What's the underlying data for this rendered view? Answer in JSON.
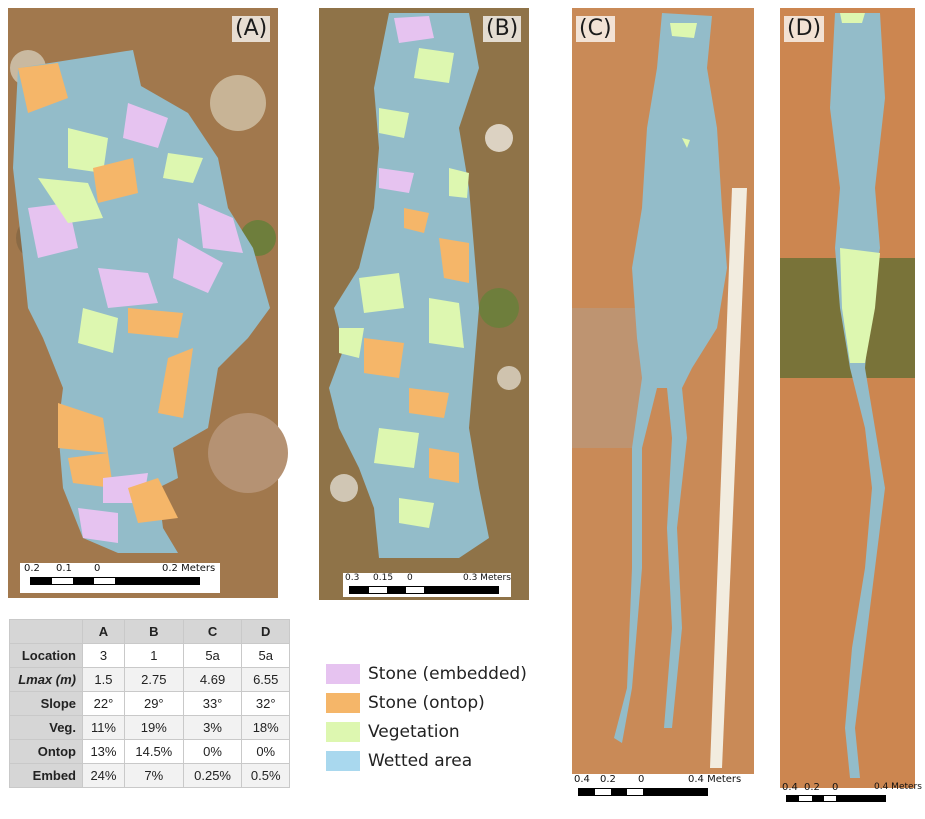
{
  "panels": [
    {
      "label": "(A)",
      "scale": {
        "ticks": [
          "0.2",
          "0.1",
          "0",
          "0.2 Meters"
        ]
      }
    },
    {
      "label": "(B)",
      "scale": {
        "ticks": [
          "0.3",
          "0.15",
          "0",
          "0.3 Meters"
        ]
      }
    },
    {
      "label": "(C)",
      "scale": {
        "ticks": [
          "0.4",
          "0.2",
          "0",
          "0.4 Meters"
        ]
      }
    },
    {
      "label": "(D)",
      "scale": {
        "ticks": [
          "0.4",
          "0.2",
          "0",
          "0.4 Meters"
        ]
      }
    }
  ],
  "legend": [
    {
      "label": "Stone (embedded)",
      "color": "#e6c3f0"
    },
    {
      "label": "Stone (ontop)",
      "color": "#f5b669"
    },
    {
      "label": "Vegetation",
      "color": "#ddf7b0"
    },
    {
      "label": "Wetted area",
      "color": "#a9d8ee"
    }
  ],
  "table": {
    "columns": [
      "",
      "A",
      "B",
      "C",
      "D"
    ],
    "rows": [
      {
        "label": "Location",
        "values": [
          "3",
          "1",
          "5a",
          "5a"
        ]
      },
      {
        "label": "Lmax (m)",
        "values": [
          "1.5",
          "2.75",
          "4.69",
          "6.55"
        ]
      },
      {
        "label": "Slope",
        "values": [
          "22°",
          "29°",
          "33°",
          "32°"
        ]
      },
      {
        "label": "Veg.",
        "values": [
          "11%",
          "19%",
          "3%",
          "18%"
        ]
      },
      {
        "label": "Ontop",
        "values": [
          "13%",
          "14.5%",
          "0%",
          "0%"
        ]
      },
      {
        "label": "Embed",
        "values": [
          "24%",
          "7%",
          "0.25%",
          "0.5%"
        ]
      }
    ]
  }
}
